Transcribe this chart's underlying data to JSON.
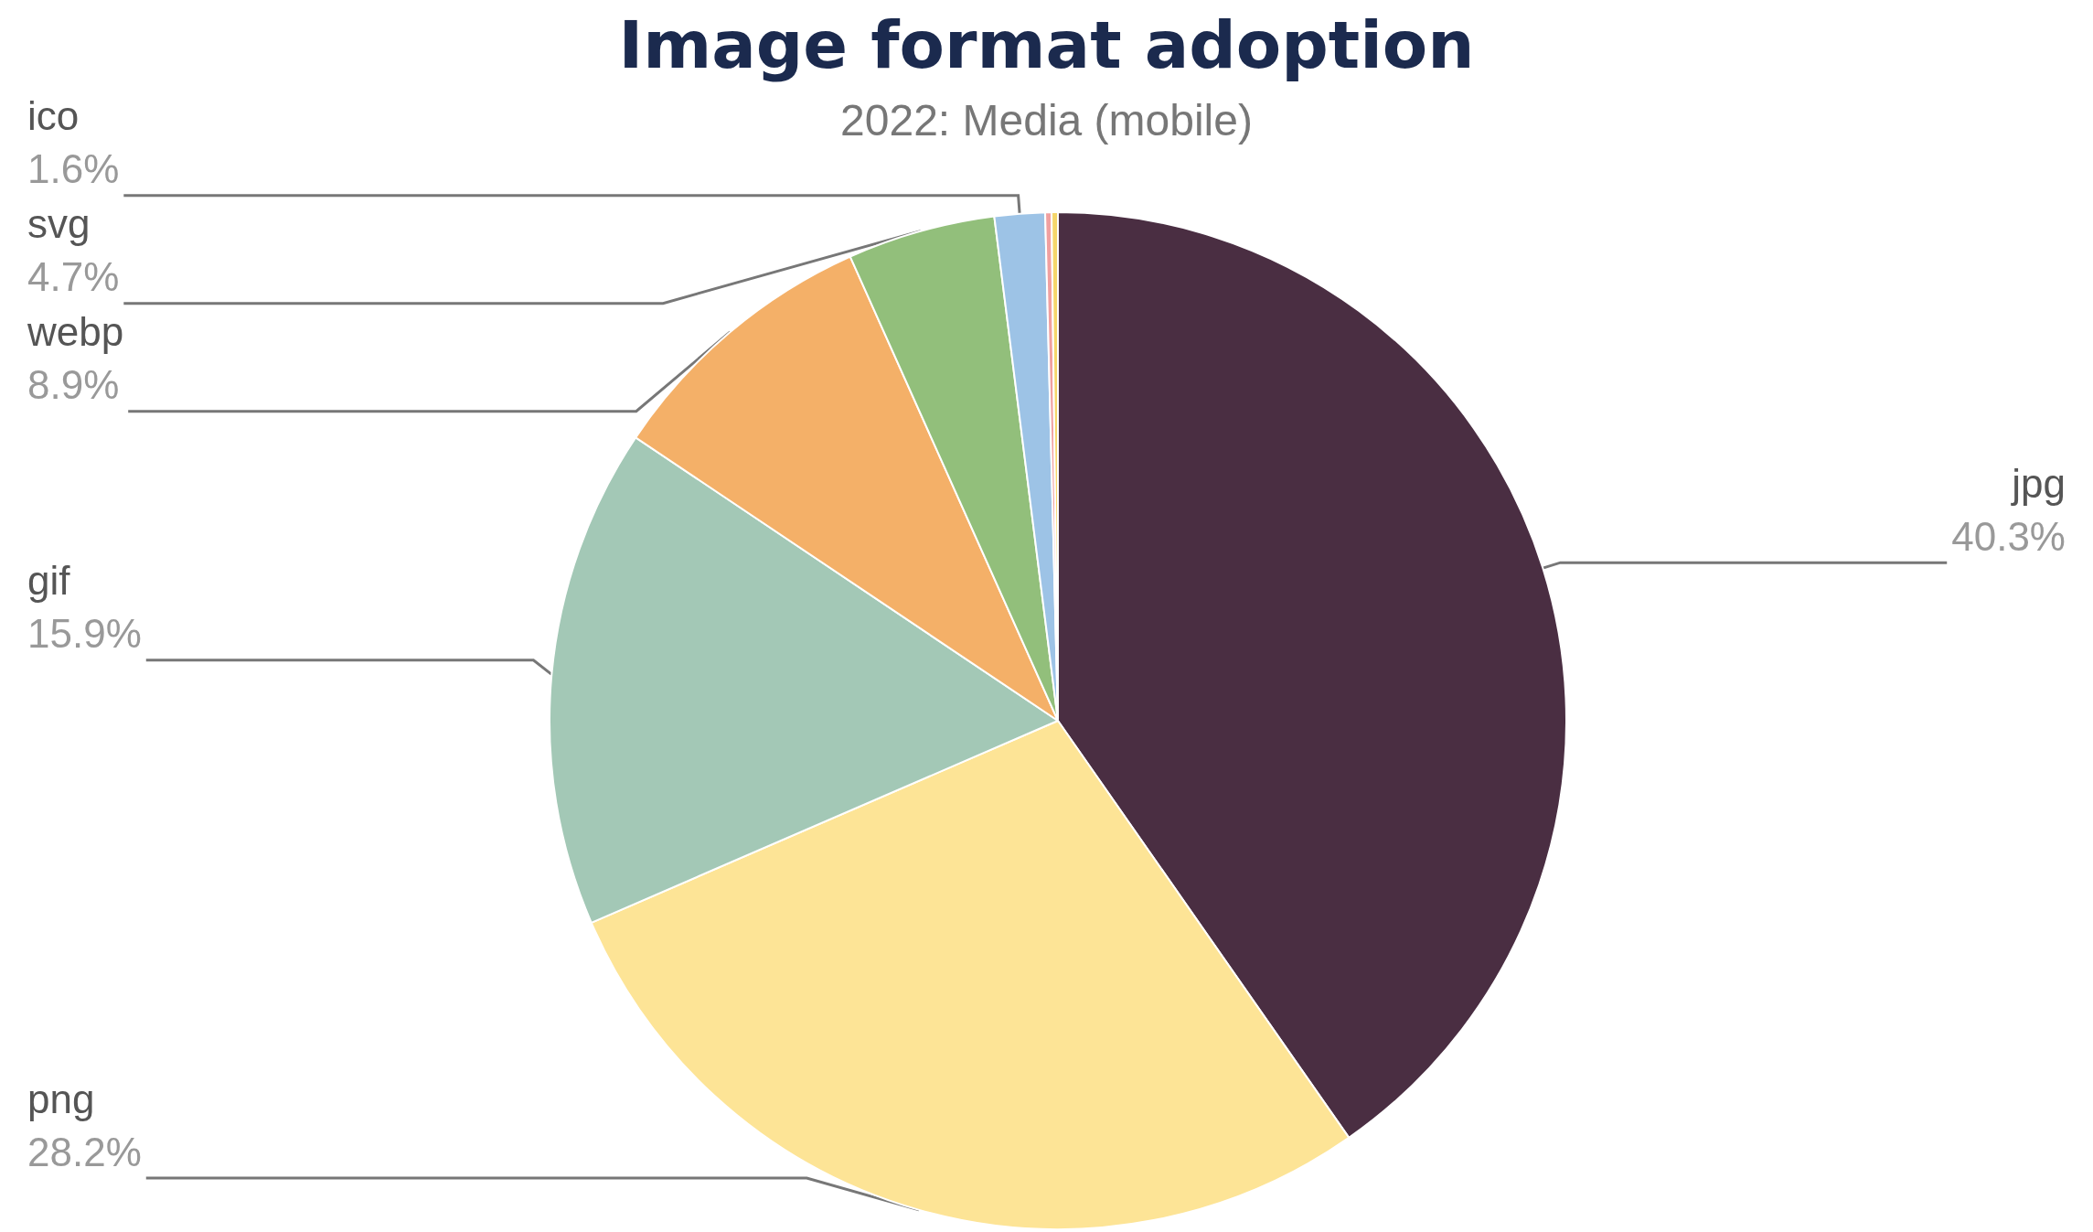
{
  "chart_data": {
    "type": "pie",
    "title": "Image format adoption",
    "subtitle": "2022: Media (mobile)",
    "categories": [
      "jpg",
      "png",
      "gif",
      "webp",
      "svg",
      "ico",
      null,
      null
    ],
    "values": [
      40.3,
      28.2,
      15.9,
      8.9,
      4.7,
      1.6,
      0.2,
      0.2
    ],
    "colors": [
      "#4a2e42",
      "#fde496",
      "#a3c8b6",
      "#f4b068",
      "#92bf7b",
      "#9dc3e6",
      "#f0a0a0",
      "#f5d66b"
    ],
    "value_labels": [
      "40.3%",
      "28.2%",
      "15.9%",
      "8.9%",
      "4.7%",
      "1.6%",
      null,
      null
    ],
    "legend": false
  }
}
